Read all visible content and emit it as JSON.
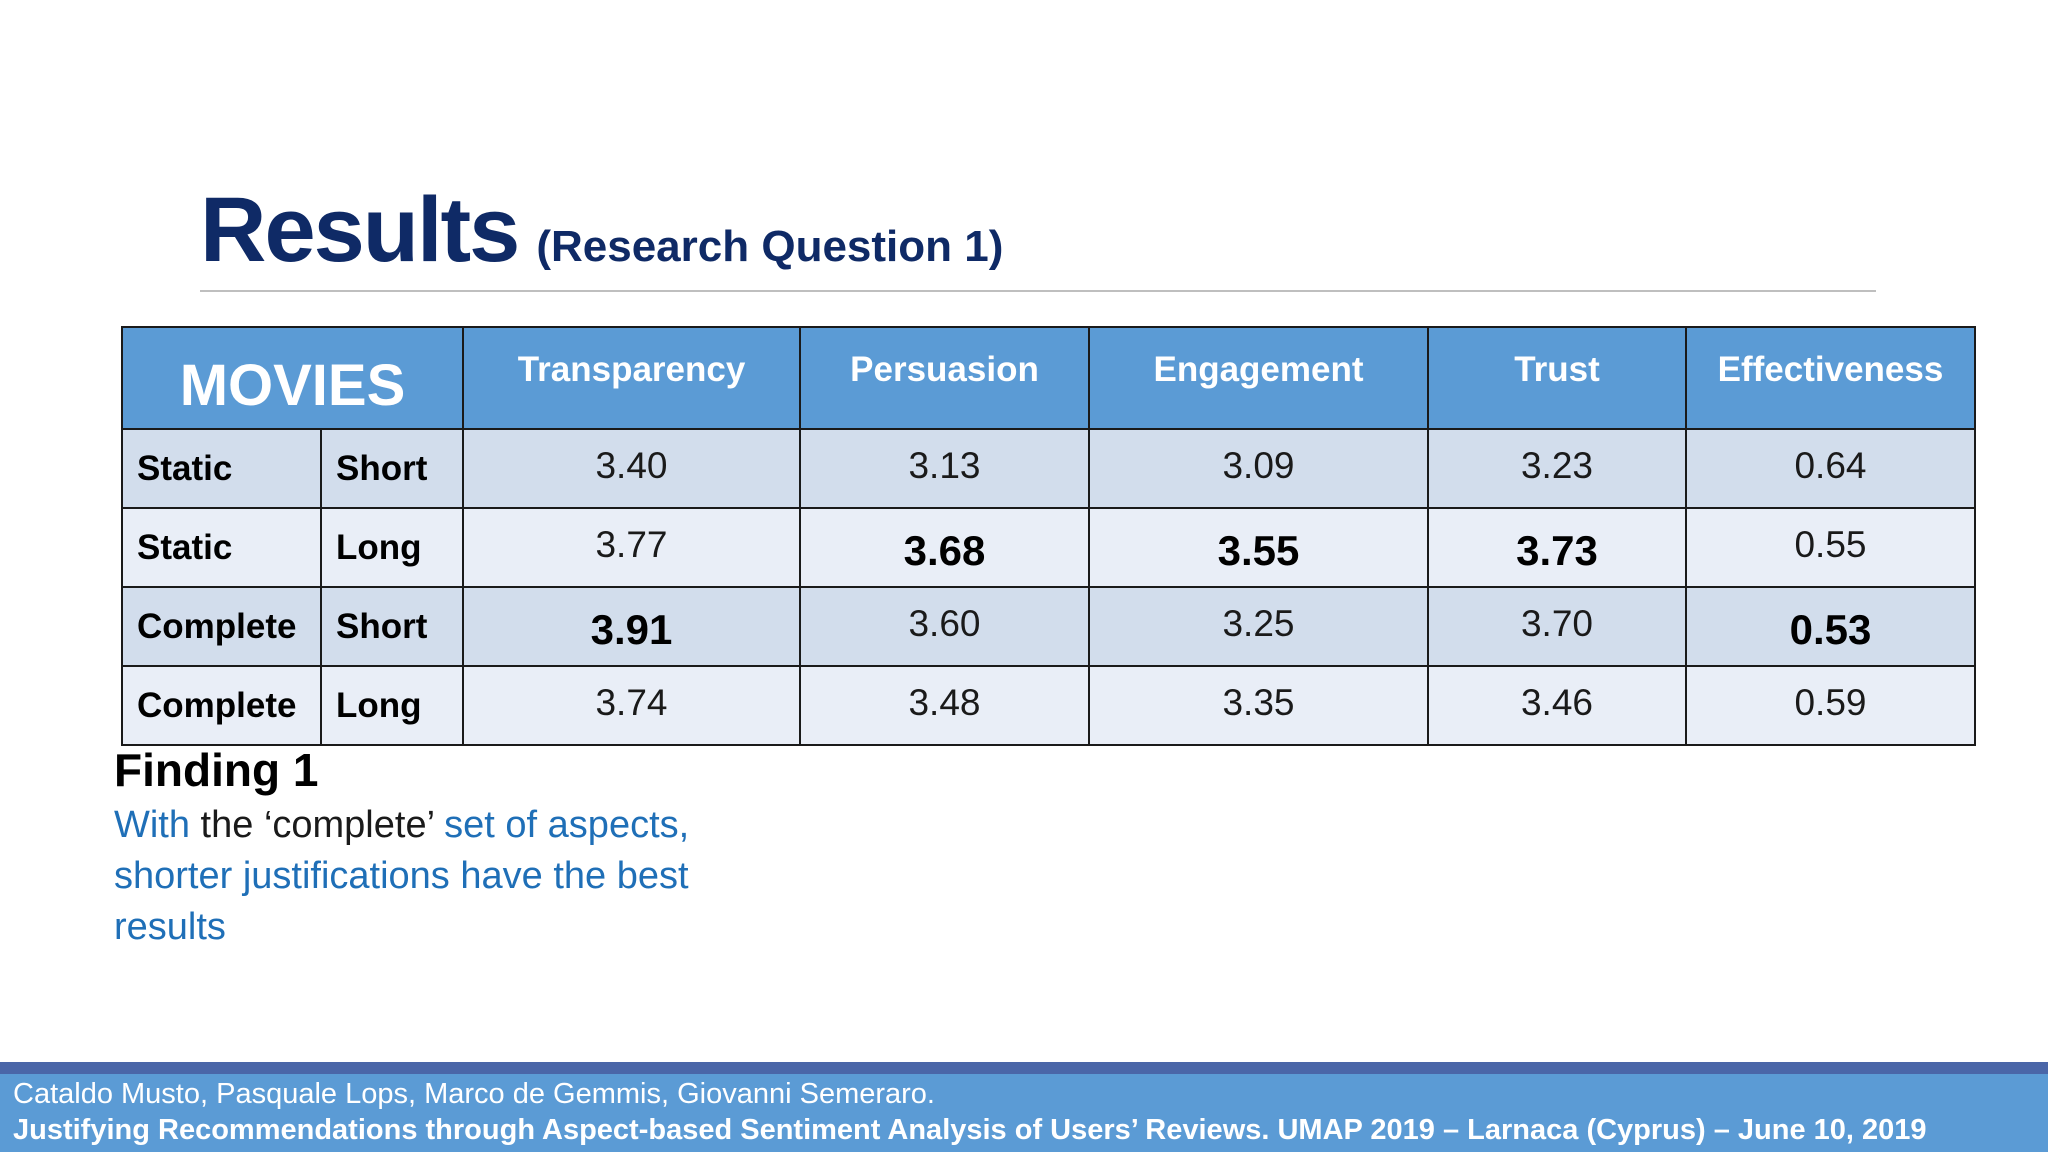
{
  "title": {
    "main": "Results",
    "sub": "(Research Question 1)"
  },
  "table": {
    "corner_label": "MOVIES",
    "columns": [
      "Transparency",
      "Persuasion",
      "Engagement",
      "Trust",
      "Effectiveness"
    ],
    "rows": [
      {
        "aspects": "Static",
        "length": "Short",
        "values": [
          "3.40",
          "3.13",
          "3.09",
          "3.23",
          "0.64"
        ],
        "bold": [
          false,
          false,
          false,
          false,
          false
        ]
      },
      {
        "aspects": "Static",
        "length": "Long",
        "values": [
          "3.77",
          "3.68",
          "3.55",
          "3.73",
          "0.55"
        ],
        "bold": [
          false,
          true,
          true,
          true,
          false
        ]
      },
      {
        "aspects": "Complete",
        "length": "Short",
        "values": [
          "3.91",
          "3.60",
          "3.25",
          "3.70",
          "0.53"
        ],
        "bold": [
          true,
          false,
          false,
          false,
          true
        ]
      },
      {
        "aspects": "Complete",
        "length": "Long",
        "values": [
          "3.74",
          "3.48",
          "3.35",
          "3.46",
          "0.59"
        ],
        "bold": [
          false,
          false,
          false,
          false,
          false
        ]
      }
    ]
  },
  "finding": {
    "title": "Finding 1",
    "parts": {
      "p1": "With",
      "p2": " the ‘complete’ ",
      "p3": "set of aspects, shorter justifications have the best results"
    }
  },
  "footer": {
    "authors": "Cataldo Musto, Pasquale Lops, Marco de Gemmis, Giovanni Semeraro.",
    "citation": "Justifying Recommendations through Aspect-based Sentiment Analysis of Users’ Reviews. UMAP 2019 – Larnaca (Cyprus) – June 10, 2019"
  },
  "colors": {
    "title": "#0f2a66",
    "header_blue": "#5b9bd5",
    "row_dark": "#d2ddec",
    "row_light": "#e9eef7",
    "finding_blue": "#1f6fb7",
    "footer_stripe": "#4a66a8"
  }
}
